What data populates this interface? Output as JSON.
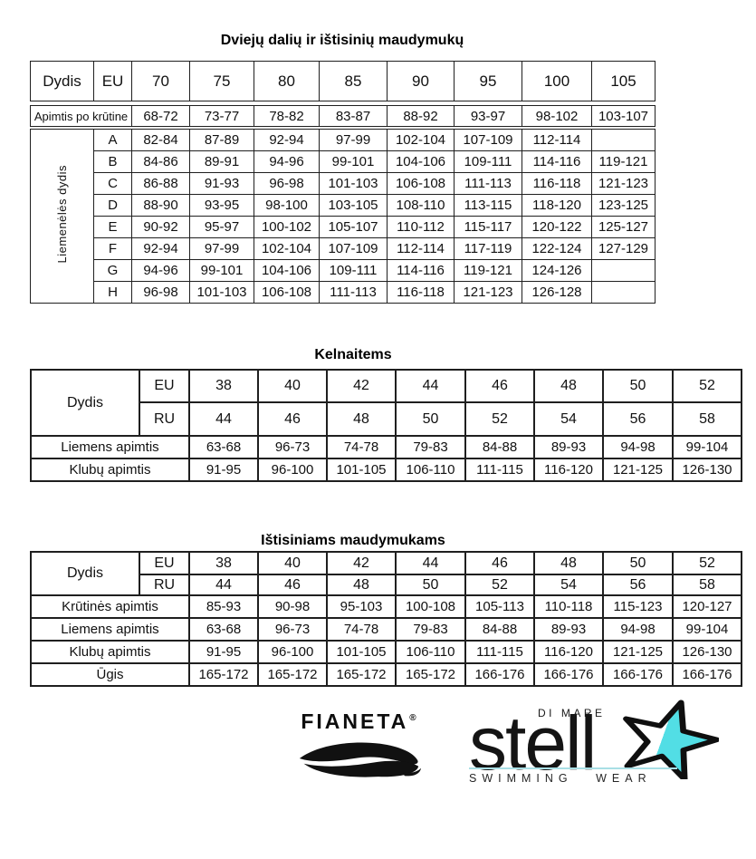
{
  "table1": {
    "title": "Dviejų dalių ir ištisinių maudymukų",
    "header": {
      "dydis": "Dydis",
      "eu": "EU",
      "sizes": [
        "70",
        "75",
        "80",
        "85",
        "90",
        "95",
        "100",
        "105"
      ]
    },
    "underbust_label": "Apimtis po krūtine",
    "underbust_values": [
      "68-72",
      "73-77",
      "78-82",
      "83-87",
      "88-92",
      "93-97",
      "98-102",
      "103-107"
    ],
    "side_label": "Liemenėlės dydis",
    "cup_rows": [
      {
        "cup": "A",
        "values": [
          "82-84",
          "87-89",
          "92-94",
          "97-99",
          "102-104",
          "107-109",
          "112-114",
          ""
        ]
      },
      {
        "cup": "B",
        "values": [
          "84-86",
          "89-91",
          "94-96",
          "99-101",
          "104-106",
          "109-111",
          "114-116",
          "119-121"
        ]
      },
      {
        "cup": "C",
        "values": [
          "86-88",
          "91-93",
          "96-98",
          "101-103",
          "106-108",
          "111-113",
          "116-118",
          "121-123"
        ]
      },
      {
        "cup": "D",
        "values": [
          "88-90",
          "93-95",
          "98-100",
          "103-105",
          "108-110",
          "113-115",
          "118-120",
          "123-125"
        ]
      },
      {
        "cup": "E",
        "values": [
          "90-92",
          "95-97",
          "100-102",
          "105-107",
          "110-112",
          "115-117",
          "120-122",
          "125-127"
        ]
      },
      {
        "cup": "F",
        "values": [
          "92-94",
          "97-99",
          "102-104",
          "107-109",
          "112-114",
          "117-119",
          "122-124",
          "127-129"
        ]
      },
      {
        "cup": "G",
        "values": [
          "94-96",
          "99-101",
          "104-106",
          "109-111",
          "114-116",
          "119-121",
          "124-126",
          ""
        ]
      },
      {
        "cup": "H",
        "values": [
          "96-98",
          "101-103",
          "106-108",
          "111-113",
          "116-118",
          "121-123",
          "126-128",
          ""
        ]
      }
    ]
  },
  "table2": {
    "title": "Kelnaitems",
    "dydis_label": "Dydis",
    "eu_label": "EU",
    "ru_label": "RU",
    "eu_sizes": [
      "38",
      "40",
      "42",
      "44",
      "46",
      "48",
      "50",
      "52"
    ],
    "ru_sizes": [
      "44",
      "46",
      "48",
      "50",
      "52",
      "54",
      "56",
      "58"
    ],
    "rows": [
      {
        "label": "Liemens apimtis",
        "values": [
          "63-68",
          "96-73",
          "74-78",
          "79-83",
          "84-88",
          "89-93",
          "94-98",
          "99-104"
        ]
      },
      {
        "label": "Klubų apimtis",
        "values": [
          "91-95",
          "96-100",
          "101-105",
          "106-110",
          "111-115",
          "116-120",
          "121-125",
          "126-130"
        ]
      }
    ]
  },
  "table3": {
    "title": "Ištisiniams maudymukams",
    "dydis_label": "Dydis",
    "eu_label": "EU",
    "ru_label": "RU",
    "eu_sizes": [
      "38",
      "40",
      "42",
      "44",
      "46",
      "48",
      "50",
      "52"
    ],
    "ru_sizes": [
      "44",
      "46",
      "48",
      "50",
      "52",
      "54",
      "56",
      "58"
    ],
    "rows": [
      {
        "label": "Krūtinės apimtis",
        "values": [
          "85-93",
          "90-98",
          "95-103",
          "100-108",
          "105-113",
          "110-118",
          "115-123",
          "120-127"
        ]
      },
      {
        "label": "Liemens apimtis",
        "values": [
          "63-68",
          "96-73",
          "74-78",
          "79-83",
          "84-88",
          "89-93",
          "94-98",
          "99-104"
        ]
      },
      {
        "label": "Klubų apimtis",
        "values": [
          "91-95",
          "96-100",
          "101-105",
          "106-110",
          "111-115",
          "116-120",
          "121-125",
          "126-130"
        ]
      },
      {
        "label": "Ūgis",
        "values": [
          "165-172",
          "165-172",
          "165-172",
          "165-172",
          "166-176",
          "166-176",
          "166-176",
          "166-176"
        ]
      }
    ]
  },
  "logos": {
    "fianeta": {
      "text": "FIANETA",
      "registered": "®"
    },
    "stella": {
      "wordmark": "stell",
      "di_mare": "DI MARE",
      "tagline": "SWIMMING WEAR",
      "star_color": "#52dee5",
      "line_color": "#a9dfe5"
    }
  }
}
